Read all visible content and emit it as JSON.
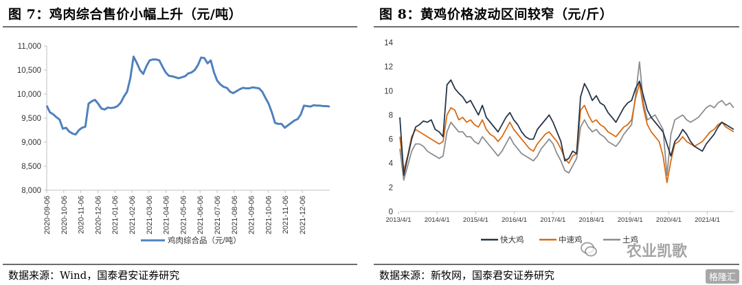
{
  "left": {
    "title": "图 7：鸡肉综合售价小幅上升（元/吨）",
    "source": "数据来源：Wind，国泰君安证券研究"
  },
  "right": {
    "title": "图 8：黄鸡价格波动区间较窄（元/斤）",
    "source": "数据来源：新牧网，国泰君安证券研究"
  },
  "watermark": {
    "text": "农业凯歌",
    "brand": "格隆汇"
  },
  "chart_data": [
    {
      "type": "line",
      "title": "",
      "xlabel": "",
      "ylabel": "",
      "ylim": [
        8000,
        11000
      ],
      "yticks": [
        8000,
        8500,
        9000,
        9500,
        10000,
        10500,
        11000
      ],
      "ytick_labels": [
        "8,000",
        "8,500",
        "9,000",
        "9,500",
        "10,000",
        "10,500",
        "11,000"
      ],
      "xtick_labels": [
        "2020-09-06",
        "2020-10-06",
        "2020-11-06",
        "2020-12-06",
        "2021-01-06",
        "2021-02-06",
        "2021-03-06",
        "2021-04-06",
        "2021-05-06",
        "2021-06-06",
        "2021-07-06",
        "2021-08-06",
        "2021-09-06",
        "2021-10-06",
        "2021-11-06",
        "2021-12-06"
      ],
      "grid": false,
      "legend": "bottom",
      "color": "#4f81bd",
      "series": [
        {
          "name": "鸡肉综合品（元/吨）",
          "values": [
            9760,
            9620,
            9580,
            9520,
            9470,
            9280,
            9300,
            9220,
            9180,
            9160,
            9250,
            9300,
            9320,
            9800,
            9850,
            9880,
            9800,
            9700,
            9680,
            9720,
            9710,
            9720,
            9750,
            9820,
            9950,
            10050,
            10330,
            10780,
            10650,
            10500,
            10420,
            10580,
            10700,
            10720,
            10720,
            10700,
            10570,
            10450,
            10380,
            10370,
            10350,
            10330,
            10350,
            10370,
            10430,
            10450,
            10500,
            10600,
            10760,
            10750,
            10640,
            10700,
            10450,
            10280,
            10200,
            10150,
            10130,
            10050,
            10020,
            10060,
            10100,
            10130,
            10120,
            10120,
            10140,
            10130,
            10120,
            10050,
            9920,
            9800,
            9620,
            9400,
            9380,
            9380,
            9300,
            9350,
            9400,
            9450,
            9480,
            9580,
            9760,
            9750,
            9740,
            9770,
            9760,
            9760,
            9750,
            9750,
            9740
          ]
        }
      ]
    },
    {
      "type": "line",
      "title": "",
      "xlabel": "",
      "ylabel": "",
      "ylim": [
        0,
        14
      ],
      "yticks": [
        0,
        2,
        4,
        6,
        8,
        10,
        12,
        14
      ],
      "xtick_labels": [
        "2013/4/1",
        "2014/4/1",
        "2015/4/1",
        "2016/4/1",
        "2017/4/1",
        "2018/4/1",
        "2019/4/1",
        "2020/4/1",
        "2021/4/1"
      ],
      "grid": false,
      "legend": "bottom",
      "series": [
        {
          "name": "快大鸡",
          "color": "#243447",
          "values": [
            7.8,
            3.0,
            4.5,
            6.0,
            7.0,
            7.2,
            7.5,
            7.4,
            7.6,
            6.8,
            6.6,
            6.2,
            10.5,
            10.9,
            10.2,
            9.8,
            9.5,
            9.0,
            9.2,
            8.6,
            8.0,
            8.8,
            7.8,
            7.4,
            7.0,
            6.6,
            7.2,
            7.8,
            8.2,
            7.6,
            7.2,
            6.6,
            6.2,
            6.0,
            6.0,
            6.8,
            7.2,
            7.6,
            8.0,
            7.4,
            6.6,
            5.8,
            4.2,
            4.4,
            5.0,
            4.8,
            9.5,
            10.6,
            10.0,
            9.2,
            9.6,
            9.0,
            8.8,
            8.2,
            7.8,
            7.4,
            8.0,
            8.6,
            9.0,
            9.2,
            10.2,
            10.8,
            9.6,
            8.4,
            7.8,
            7.4,
            7.0,
            6.6,
            5.6,
            4.6,
            5.8,
            6.2,
            6.8,
            6.4,
            5.8,
            5.4,
            5.2,
            5.0,
            5.6,
            6.0,
            6.4,
            7.0,
            7.4,
            7.2,
            7.0,
            6.8
          ]
        },
        {
          "name": "中速鸡",
          "color": "#d86a12",
          "values": [
            6.2,
            3.4,
            4.6,
            6.2,
            6.8,
            6.6,
            6.4,
            6.2,
            6.0,
            5.8,
            5.6,
            5.8,
            8.0,
            8.6,
            8.4,
            7.6,
            7.8,
            7.4,
            7.6,
            7.2,
            7.0,
            7.6,
            6.8,
            6.4,
            6.2,
            5.8,
            6.2,
            6.8,
            7.4,
            6.8,
            6.4,
            6.0,
            5.6,
            5.2,
            5.0,
            5.6,
            6.0,
            6.4,
            6.6,
            6.2,
            5.8,
            5.2,
            4.4,
            4.0,
            4.6,
            4.8,
            8.4,
            8.8,
            8.0,
            7.4,
            7.6,
            7.2,
            7.0,
            6.6,
            6.4,
            6.2,
            6.6,
            7.0,
            7.2,
            7.6,
            9.4,
            10.6,
            8.6,
            7.2,
            6.6,
            6.2,
            5.8,
            4.6,
            2.4,
            4.2,
            5.6,
            5.8,
            6.2,
            5.8,
            5.6,
            5.4,
            5.6,
            5.8,
            6.2,
            6.6,
            6.8,
            7.2,
            7.4,
            7.0,
            6.8,
            6.6
          ]
        },
        {
          "name": "土鸡",
          "color": "#8c8c8c",
          "values": [
            5.2,
            2.6,
            3.8,
            5.0,
            5.6,
            5.6,
            5.4,
            5.0,
            4.8,
            4.6,
            4.4,
            4.6,
            6.6,
            7.4,
            7.0,
            6.6,
            6.6,
            6.2,
            6.2,
            5.8,
            5.6,
            6.2,
            5.8,
            5.4,
            5.0,
            4.6,
            5.0,
            5.6,
            6.2,
            5.6,
            5.2,
            4.8,
            4.6,
            4.4,
            4.2,
            4.6,
            5.2,
            5.6,
            6.0,
            5.6,
            4.8,
            4.2,
            3.4,
            3.2,
            3.8,
            4.4,
            7.0,
            7.6,
            7.0,
            6.6,
            6.8,
            6.4,
            6.2,
            5.8,
            5.6,
            5.4,
            5.8,
            6.4,
            6.8,
            7.2,
            9.6,
            12.4,
            9.0,
            7.6,
            7.8,
            8.0,
            7.4,
            6.8,
            3.0,
            6.4,
            7.6,
            7.8,
            8.0,
            7.6,
            7.4,
            7.6,
            7.8,
            8.2,
            8.6,
            8.8,
            8.6,
            9.0,
            9.2,
            8.8,
            9.0,
            8.6
          ]
        }
      ]
    }
  ]
}
